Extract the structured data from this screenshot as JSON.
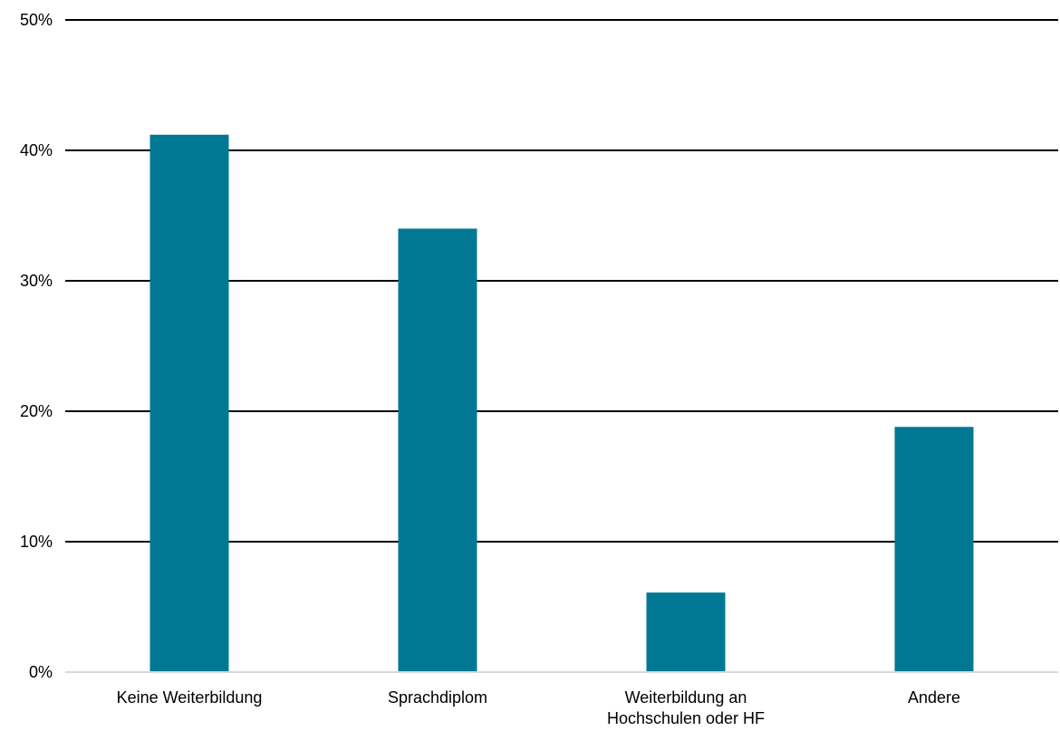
{
  "chart_data": {
    "type": "bar",
    "title": "",
    "xlabel": "",
    "ylabel": "",
    "categories": [
      [
        "Keine Weiterbildung"
      ],
      [
        "Sprachdiplom"
      ],
      [
        "Weiterbildung an",
        "Hochschulen oder HF"
      ],
      [
        "Andere"
      ]
    ],
    "values": [
      41.2,
      34.0,
      6.1,
      18.8
    ],
    "ylim": [
      0,
      50
    ],
    "yticks": [
      0,
      10,
      20,
      30,
      40,
      50
    ],
    "ytick_labels": [
      "0%",
      "10%",
      "20%",
      "30%",
      "40%",
      "50%"
    ],
    "grid": true,
    "legend": "none",
    "colors": {
      "bar": "#007894",
      "gridline": "#000000",
      "baseline": "#d9d9d9",
      "text": "#000000"
    }
  }
}
